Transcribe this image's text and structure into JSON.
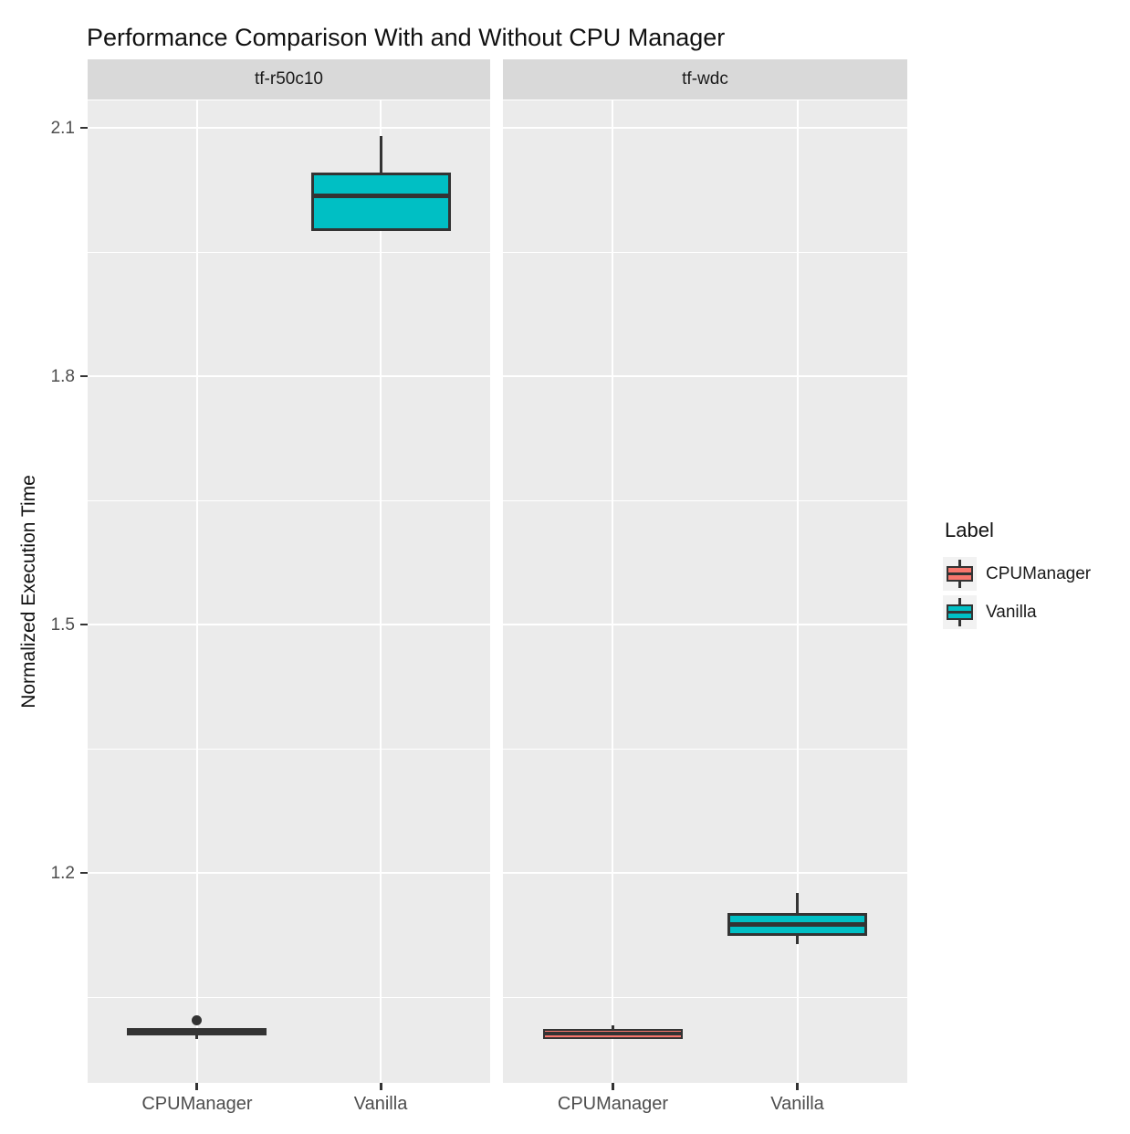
{
  "chart_data": {
    "type": "boxplot",
    "title": "Performance Comparison With and Without CPU Manager",
    "ylabel": "Normalized Execution Time",
    "x_categories": [
      "CPUManager",
      "Vanilla"
    ],
    "y_ticks": [
      2.1,
      1.8,
      1.5,
      1.2
    ],
    "y_minor_ticks": [
      1.95,
      1.65,
      1.35,
      1.05
    ],
    "y_domain": [
      0.947,
      2.133
    ],
    "grid": "major-and-minor-horizontal, major-vertical-at-categories",
    "facets": [
      {
        "label": "tf-r50c10",
        "boxes": [
          {
            "group": "CPUManager",
            "color_key": "CPUManager",
            "whisker_low": 1.0,
            "q1": 1.004,
            "median": 1.009,
            "q3": 1.013,
            "whisker_high": 1.013,
            "outliers": [
              1.022
            ]
          },
          {
            "group": "Vanilla",
            "color_key": "Vanilla",
            "whisker_low": 1.975,
            "q1": 1.975,
            "median": 2.018,
            "q3": 2.046,
            "whisker_high": 2.09,
            "outliers": []
          }
        ]
      },
      {
        "label": "tf-wdc",
        "boxes": [
          {
            "group": "CPUManager",
            "color_key": "CPUManager",
            "whisker_low": 1.0,
            "q1": 1.0,
            "median": 1.006,
            "q3": 1.012,
            "whisker_high": 1.016,
            "outliers": []
          },
          {
            "group": "Vanilla",
            "color_key": "Vanilla",
            "whisker_low": 1.115,
            "q1": 1.124,
            "median": 1.138,
            "q3": 1.152,
            "whisker_high": 1.176,
            "outliers": []
          }
        ]
      }
    ],
    "legend": {
      "title": "Label",
      "position": "right",
      "entries": [
        {
          "label": "CPUManager",
          "color": "#F8766D"
        },
        {
          "label": "Vanilla",
          "color": "#00BFC4"
        }
      ]
    },
    "colors": {
      "CPUManager": "#F8766D",
      "Vanilla": "#00BFC4",
      "outline": "#333333",
      "panel_background": "#EBEBEB",
      "strip_background": "#D9D9D9",
      "gridline": "#FFFFFF",
      "axis_text": "#4D4D4D"
    }
  }
}
